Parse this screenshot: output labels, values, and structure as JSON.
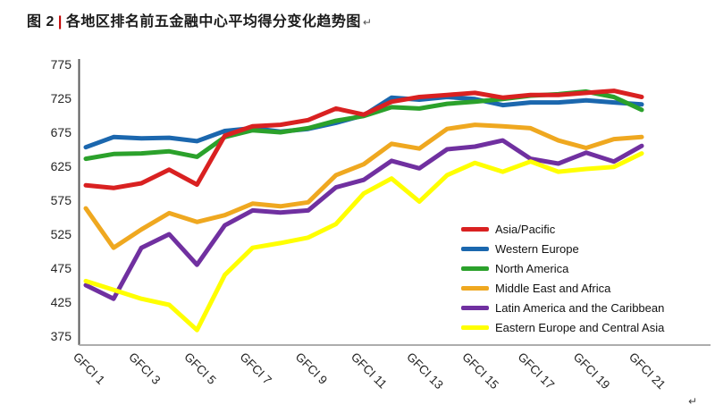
{
  "document": {
    "figure_label": "图 2",
    "separator": "|",
    "title": "各地区排名前五金融中心平均得分变化趋势图",
    "title_paragraph_mark": "↵",
    "trailing_paragraph_mark": "↵"
  },
  "chart_data": {
    "type": "line",
    "x": [
      1,
      2,
      3,
      4,
      5,
      6,
      7,
      8,
      9,
      10,
      11,
      12,
      13,
      14,
      15,
      16,
      17,
      18,
      19,
      20,
      21
    ],
    "xtick_labels": [
      "GFCI 1",
      "GFCI 3",
      "GFCI 5",
      "GFCI 7",
      "GFCI 9",
      "GFCI 11",
      "GFCI 13",
      "GFCI 15",
      "GFCI 17",
      "GFCI 19",
      "GFCI 21"
    ],
    "xtick_positions": [
      1,
      3,
      5,
      7,
      9,
      11,
      13,
      15,
      17,
      19,
      21
    ],
    "ytick_labels": [
      "775",
      "725",
      "675",
      "625",
      "575",
      "525",
      "475",
      "425",
      "375"
    ],
    "ylim": [
      375,
      775
    ],
    "ytick_step": 50,
    "grid": false,
    "legend_position": "inside-right",
    "series": [
      {
        "name": "Asia/Pacific",
        "color": "#D92121",
        "values": [
          597,
          593,
          600,
          620,
          598,
          670,
          684,
          686,
          693,
          710,
          701,
          720,
          727,
          730,
          733,
          726,
          730,
          730,
          733,
          736,
          727
        ]
      },
      {
        "name": "Western Europe",
        "color": "#1B67AE",
        "values": [
          653,
          668,
          666,
          667,
          662,
          677,
          681,
          676,
          680,
          689,
          700,
          726,
          723,
          727,
          724,
          715,
          719,
          719,
          722,
          719,
          716
        ]
      },
      {
        "name": "North America",
        "color": "#2BA12B",
        "values": [
          636,
          643,
          644,
          647,
          639,
          668,
          678,
          675,
          681,
          692,
          699,
          712,
          710,
          717,
          720,
          724,
          729,
          731,
          735,
          727,
          708
        ]
      },
      {
        "name": "Middle East and Africa",
        "color": "#EFA820",
        "values": [
          563,
          505,
          532,
          556,
          543,
          553,
          570,
          566,
          572,
          612,
          628,
          658,
          651,
          680,
          686,
          684,
          681,
          663,
          652,
          665,
          668
        ]
      },
      {
        "name": "Latin America and the Caribbean",
        "color": "#7030A0",
        "values": [
          450,
          430,
          505,
          525,
          480,
          538,
          560,
          557,
          560,
          594,
          605,
          633,
          622,
          650,
          654,
          663,
          636,
          629,
          645,
          632,
          655
        ]
      },
      {
        "name": "Eastern Europe and Central Asia",
        "color": "#FFFF00",
        "values": [
          456,
          443,
          430,
          421,
          384,
          465,
          505,
          512,
          520,
          540,
          585,
          607,
          573,
          612,
          630,
          617,
          632,
          617,
          621,
          624,
          644
        ]
      }
    ],
    "axis_left_color": "#595959",
    "axis_bottom_color": "#ADADAD",
    "tick_label_color": "#262626"
  }
}
